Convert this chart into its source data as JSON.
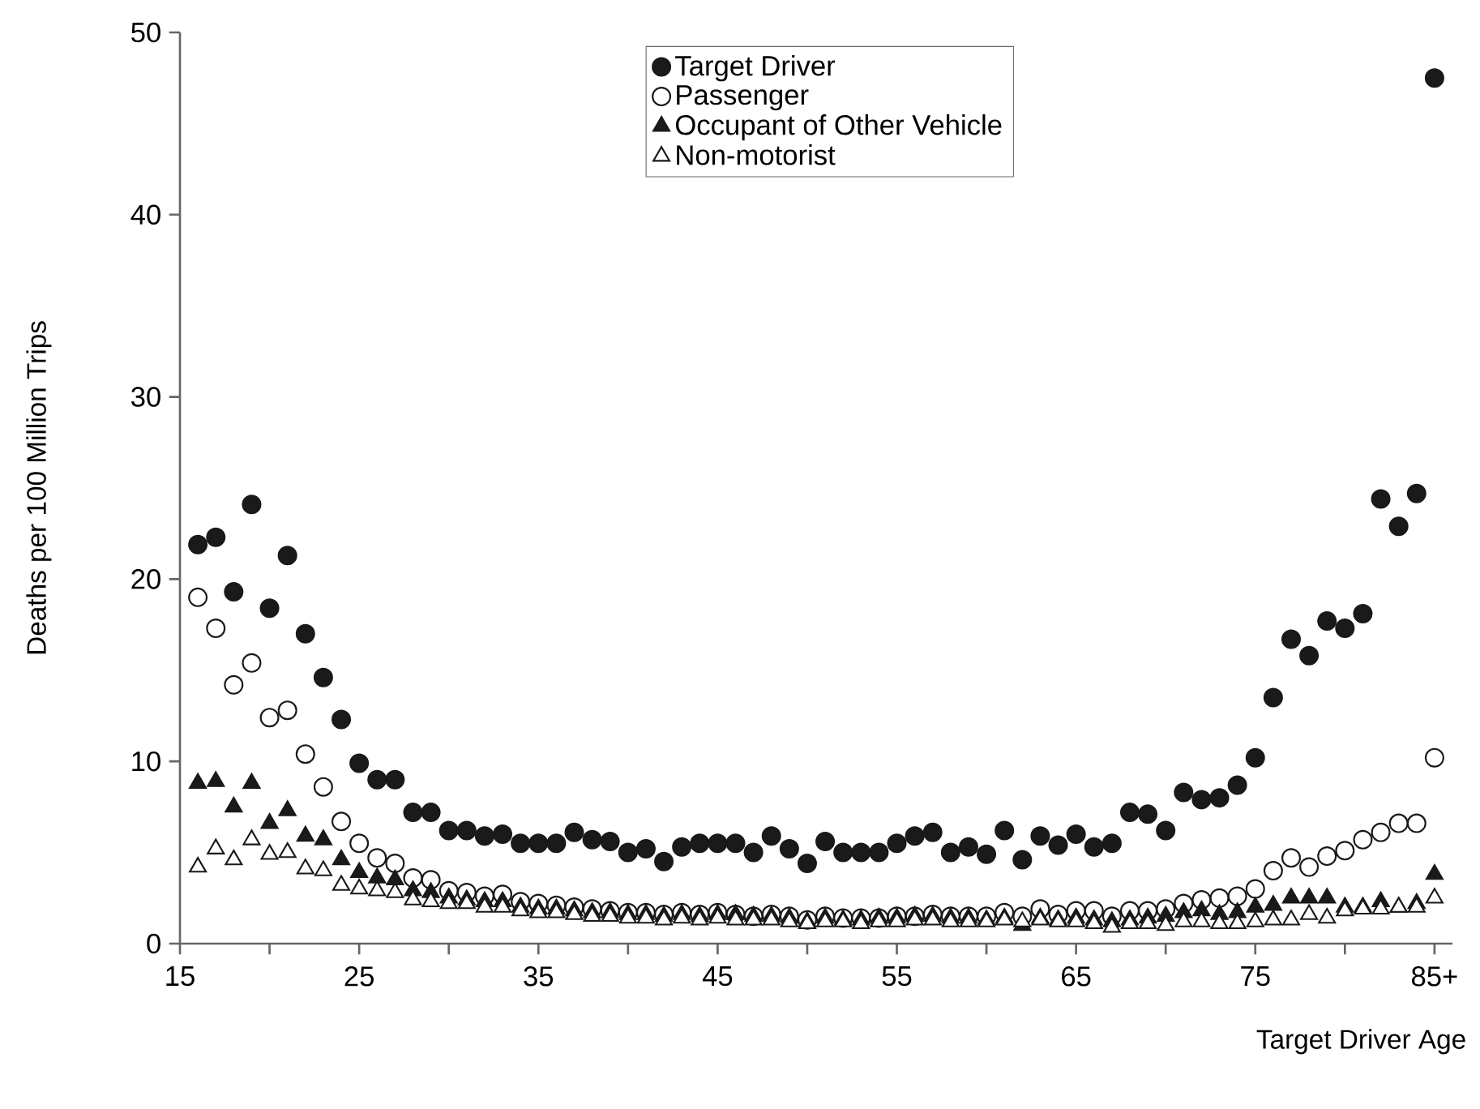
{
  "chart_data": {
    "type": "scatter",
    "xlabel": "Target Driver Age",
    "ylabel": "Deaths per 100 Million Trips",
    "x": [
      16,
      17,
      18,
      19,
      20,
      21,
      22,
      23,
      24,
      25,
      26,
      27,
      28,
      29,
      30,
      31,
      32,
      33,
      34,
      35,
      36,
      37,
      38,
      39,
      40,
      41,
      42,
      43,
      44,
      45,
      46,
      47,
      48,
      49,
      50,
      51,
      52,
      53,
      54,
      55,
      56,
      57,
      58,
      59,
      60,
      61,
      62,
      63,
      64,
      65,
      66,
      67,
      68,
      69,
      70,
      71,
      72,
      73,
      74,
      75,
      76,
      77,
      78,
      79,
      80,
      81,
      82,
      83,
      84,
      85
    ],
    "series": [
      {
        "name": "Target Driver",
        "color": "#1a1a1a",
        "marker": "circle",
        "values": [
          21.9,
          22.3,
          19.3,
          24.1,
          18.4,
          21.3,
          17.0,
          14.6,
          12.3,
          9.9,
          9.0,
          9.0,
          7.2,
          7.2,
          6.2,
          6.2,
          5.9,
          6.0,
          5.5,
          5.5,
          5.5,
          6.1,
          5.7,
          5.6,
          5.0,
          5.2,
          4.5,
          5.3,
          5.5,
          5.5,
          5.5,
          5.0,
          5.9,
          5.2,
          4.4,
          5.6,
          5.0,
          5.0,
          5.0,
          5.5,
          5.9,
          6.1,
          5.0,
          5.3,
          4.9,
          6.2,
          4.6,
          5.9,
          5.4,
          6.0,
          5.3,
          5.5,
          7.2,
          7.1,
          6.2,
          8.3,
          7.9,
          8.0,
          8.7,
          10.2,
          13.5,
          16.7,
          15.8,
          17.7,
          17.3,
          18.1,
          24.4,
          22.9,
          24.7,
          47.5
        ]
      },
      {
        "name": "Passenger",
        "color": "#ffffff",
        "marker": "circle",
        "values": [
          19.0,
          17.3,
          14.2,
          15.4,
          12.4,
          12.8,
          10.4,
          8.6,
          6.7,
          5.5,
          4.7,
          4.4,
          3.6,
          3.5,
          2.9,
          2.8,
          2.6,
          2.7,
          2.3,
          2.2,
          2.1,
          2.0,
          1.9,
          1.8,
          1.7,
          1.7,
          1.6,
          1.7,
          1.6,
          1.7,
          1.6,
          1.5,
          1.6,
          1.5,
          1.3,
          1.5,
          1.4,
          1.4,
          1.4,
          1.5,
          1.5,
          1.6,
          1.5,
          1.5,
          1.5,
          1.7,
          1.5,
          1.9,
          1.6,
          1.8,
          1.8,
          1.5,
          1.8,
          1.8,
          1.9,
          2.2,
          2.4,
          2.5,
          2.6,
          3.0,
          4.0,
          4.7,
          4.2,
          4.8,
          5.1,
          5.7,
          6.1,
          6.6,
          6.6,
          10.2
        ]
      },
      {
        "name": "Occupant of Other Vehicle",
        "color": "#1a1a1a",
        "marker": "triangle",
        "values": [
          8.8,
          8.9,
          7.5,
          8.8,
          6.6,
          7.3,
          5.9,
          5.7,
          4.6,
          3.9,
          3.6,
          3.5,
          2.9,
          2.8,
          2.5,
          2.4,
          2.3,
          2.3,
          2.0,
          1.9,
          1.9,
          1.8,
          1.7,
          1.7,
          1.6,
          1.6,
          1.5,
          1.6,
          1.5,
          1.6,
          1.6,
          1.5,
          1.5,
          1.4,
          1.2,
          1.4,
          1.3,
          1.3,
          1.4,
          1.4,
          1.5,
          1.5,
          1.4,
          1.4,
          1.3,
          1.4,
          1.0,
          1.4,
          1.3,
          1.4,
          1.3,
          1.2,
          1.3,
          1.4,
          1.5,
          1.7,
          1.8,
          1.6,
          1.7,
          2.0,
          2.1,
          2.5,
          2.5,
          2.5,
          2.0,
          2.0,
          2.3,
          2.0,
          2.2,
          3.8
        ]
      },
      {
        "name": "Non-motorist",
        "color": "#ffffff",
        "marker": "triangle",
        "values": [
          4.2,
          5.2,
          4.6,
          5.7,
          4.9,
          5.0,
          4.1,
          4.0,
          3.2,
          3.0,
          2.9,
          2.8,
          2.4,
          2.3,
          2.2,
          2.2,
          2.0,
          2.0,
          1.8,
          1.7,
          1.7,
          1.6,
          1.5,
          1.5,
          1.4,
          1.4,
          1.3,
          1.4,
          1.3,
          1.4,
          1.3,
          1.3,
          1.3,
          1.2,
          1.1,
          1.2,
          1.2,
          1.1,
          1.2,
          1.2,
          1.3,
          1.3,
          1.2,
          1.2,
          1.2,
          1.3,
          1.2,
          1.3,
          1.2,
          1.2,
          1.1,
          0.9,
          1.1,
          1.1,
          1.0,
          1.2,
          1.2,
          1.1,
          1.1,
          1.2,
          1.3,
          1.3,
          1.6,
          1.4,
          1.8,
          1.9,
          1.9,
          2.0,
          2.0,
          2.5
        ]
      }
    ],
    "xlim": [
      15,
      86
    ],
    "ylim": [
      0,
      50
    ],
    "xticks": [
      15,
      {
        "value": 20,
        "label": null
      },
      25,
      {
        "value": 30,
        "label": null
      },
      35,
      {
        "value": 40,
        "label": null
      },
      45,
      {
        "value": 50,
        "label": null
      },
      55,
      {
        "value": 60,
        "label": null
      },
      65,
      {
        "value": 70,
        "label": null
      },
      75,
      {
        "value": 80,
        "label": null
      },
      {
        "value": 85,
        "label": "85+"
      }
    ],
    "yticks": [
      0,
      10,
      20,
      30,
      40,
      50
    ],
    "legend": "top",
    "grid": false
  }
}
